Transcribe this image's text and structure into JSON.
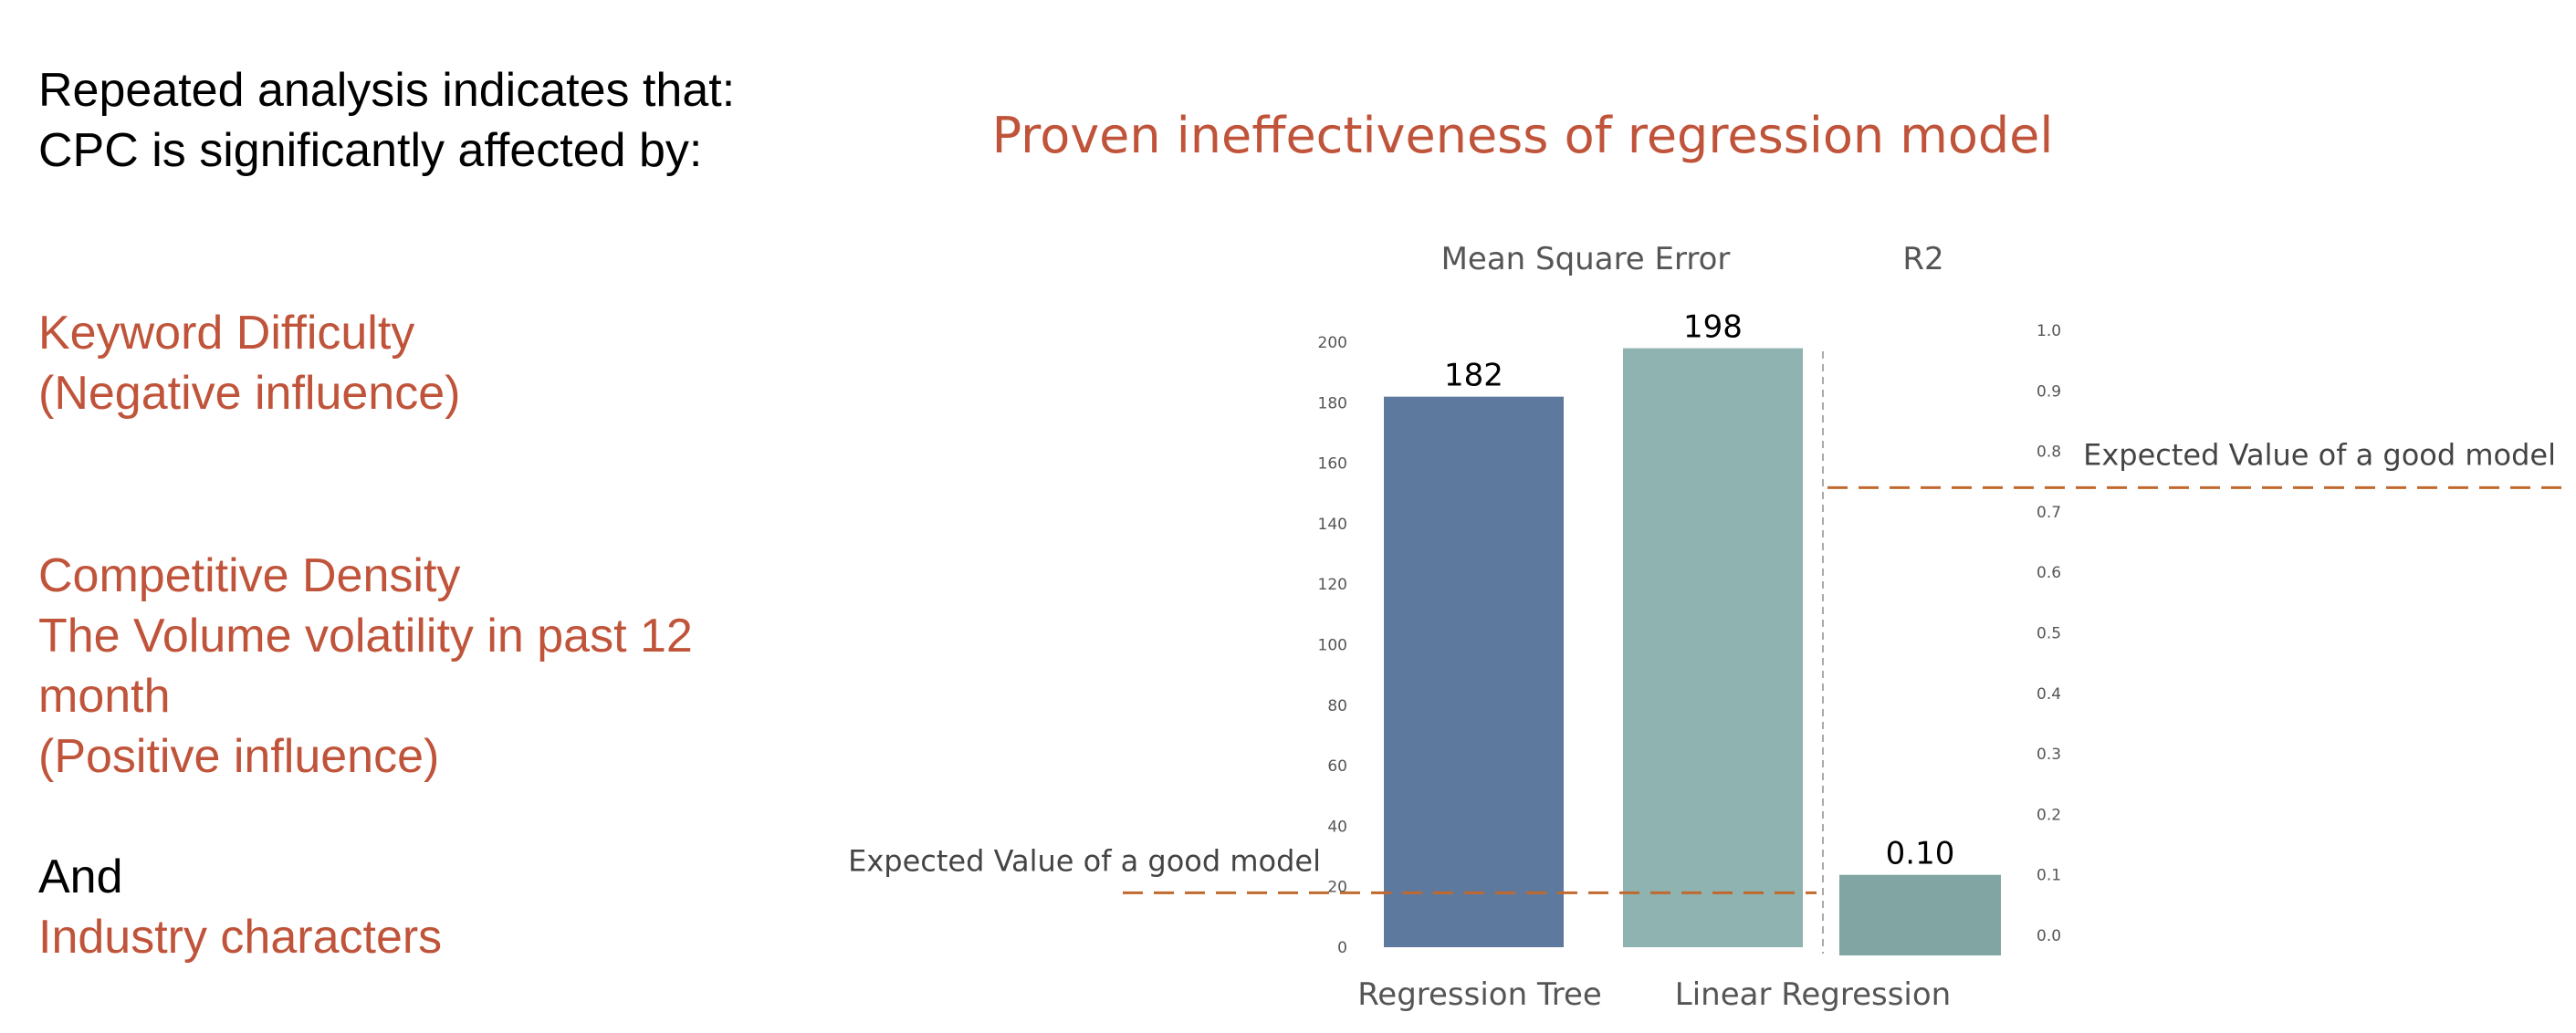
{
  "colors": {
    "accent": "#c0543a",
    "text": "#000000",
    "bar_regression_tree": "#5e799e",
    "bar_linear_regression": "#8eb3b1",
    "bar_r2": "#81a5a2",
    "guide": "#c0692f",
    "axis_text": "#555555"
  },
  "left_panel": {
    "intro_line1": "Repeated analysis indicates that:",
    "intro_line2": "CPC is significantly affected by:",
    "factor1_line1": "Keyword Difficulty",
    "factor1_line2": "(Negative influence)",
    "factor2_line1": "Competitive Density",
    "factor2_line2": "The Volume volatility in past 12",
    "factor2_line3": "month",
    "factor2_line4": "(Positive influence)",
    "and_label": "And",
    "factor3_line1": "Industry characters"
  },
  "chart_data": {
    "type": "bar",
    "title": "Proven ineffectiveness of regression model",
    "panels": [
      {
        "name": "Mean Square Error",
        "categories": [
          "Regression Tree",
          "Linear Regression"
        ],
        "values": [
          182,
          198
        ],
        "data_labels": [
          "182",
          "198"
        ],
        "ylim": [
          0,
          200
        ],
        "yticks": [
          "0",
          "20",
          "40",
          "60",
          "80",
          "100",
          "120",
          "140",
          "160",
          "180",
          "200"
        ],
        "reference_line": {
          "value": 18,
          "label": "Expected Value of a good model",
          "style": "dashed"
        }
      },
      {
        "name": "R2",
        "categories": [
          ""
        ],
        "values": [
          0.1
        ],
        "data_labels": [
          "0.10"
        ],
        "ylim": [
          0,
          1.0
        ],
        "yticks": [
          "0.0",
          "0.1",
          "0.2",
          "0.3",
          "0.4",
          "0.5",
          "0.6",
          "0.7",
          "0.8",
          "0.9",
          "1.0"
        ],
        "reference_line": {
          "value": 0.74,
          "label": "Expected Value of a good model",
          "style": "dashed"
        }
      }
    ],
    "grid": false,
    "legend": "none"
  }
}
